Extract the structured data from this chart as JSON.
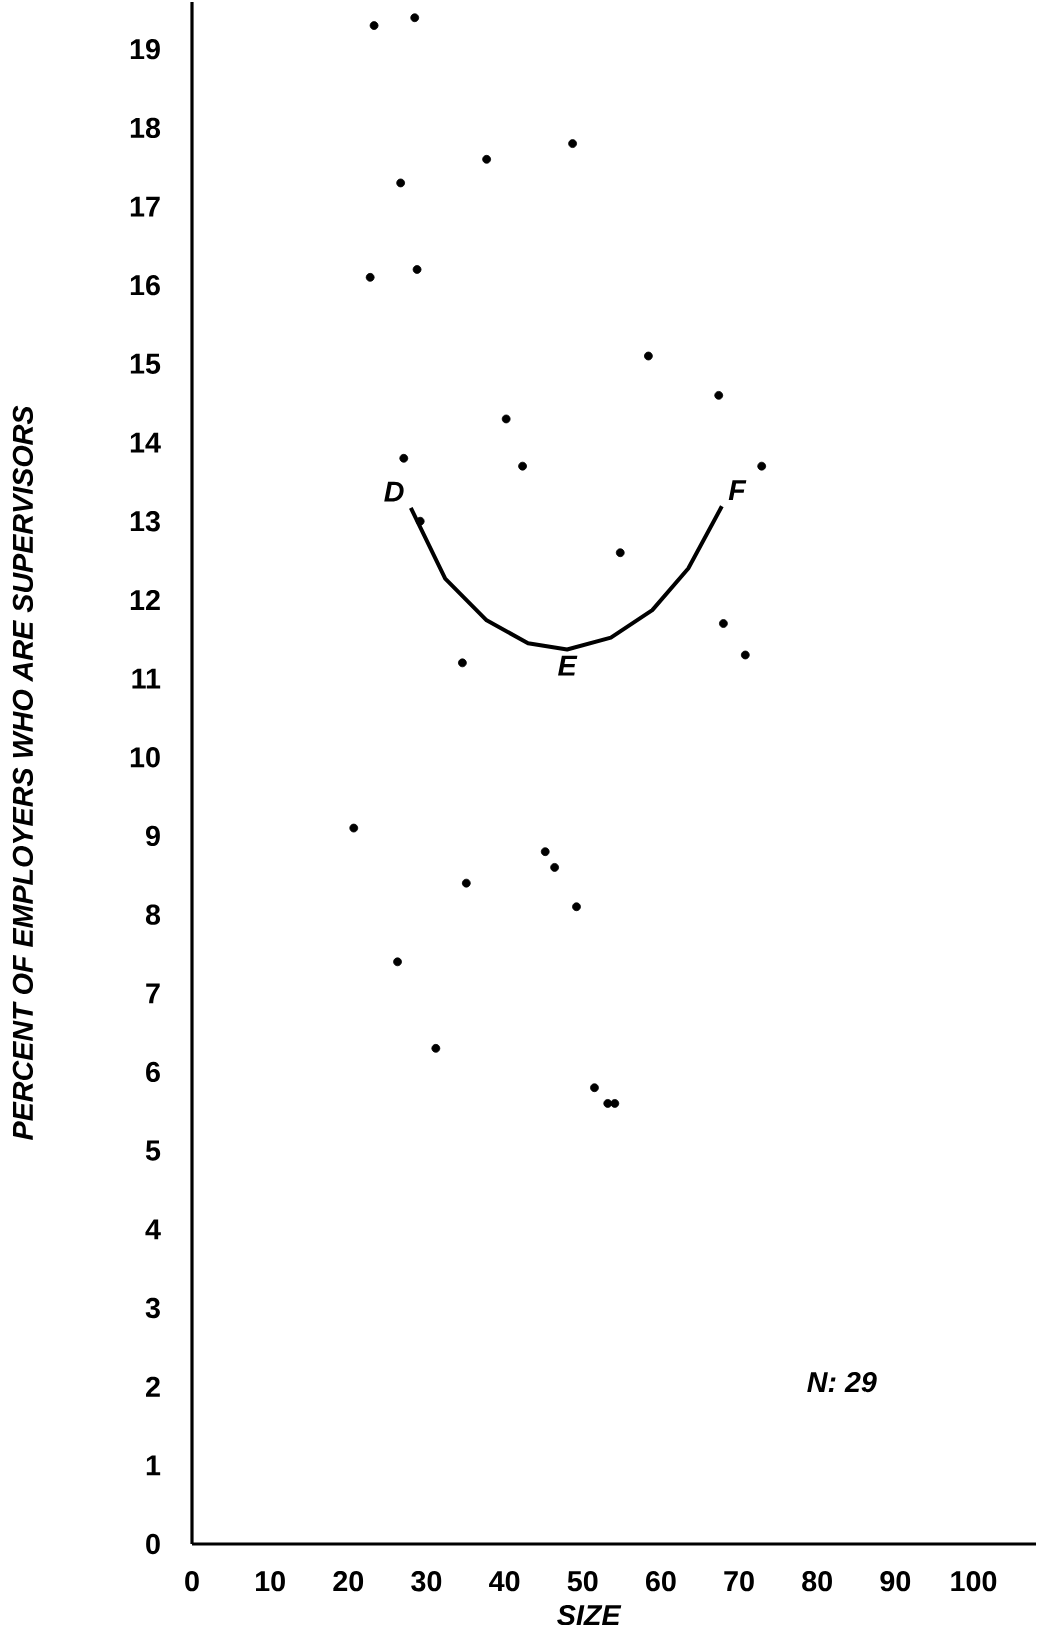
{
  "chart_data": {
    "type": "scatter",
    "xlabel": "SIZE",
    "ylabel": "PERCENT OF EMPLOYERS WHO ARE SUPERVISORS",
    "xlim": [
      0,
      108
    ],
    "ylim": [
      0,
      19.6
    ],
    "xticks": [
      0,
      10,
      20,
      30,
      40,
      50,
      60,
      70,
      80,
      90,
      100
    ],
    "yticks": [
      0,
      1,
      2,
      3,
      4,
      5,
      6,
      7,
      8,
      9,
      10,
      11,
      12,
      13,
      14,
      15,
      16,
      17,
      18,
      19
    ],
    "grid": false,
    "series": [
      {
        "type": "scatter",
        "marker": "circle",
        "color": "#000000",
        "x": [
          23.3,
          28.5,
          37.7,
          48.7,
          26.7,
          22.8,
          28.8,
          58.4,
          67.4,
          40.2,
          27.1,
          42.3,
          72.9,
          29.2,
          54.8,
          68.0,
          70.8,
          34.6,
          20.7,
          45.2,
          46.4,
          35.1,
          49.2,
          26.3,
          31.2,
          51.5,
          53.2,
          54.1
        ],
        "values": [
          19.3,
          19.4,
          17.6,
          17.8,
          17.3,
          16.1,
          16.2,
          15.1,
          14.6,
          14.3,
          13.8,
          13.7,
          13.7,
          13.0,
          12.6,
          11.7,
          11.3,
          11.2,
          9.1,
          8.8,
          8.6,
          8.4,
          8.1,
          7.4,
          6.3,
          5.8,
          5.6,
          5.6
        ]
      },
      {
        "type": "line",
        "marker": "none",
        "color": "#000000",
        "x": [
          28.0,
          32.4,
          37.7,
          43.0,
          48.0,
          53.6,
          58.9,
          63.5,
          67.8
        ],
        "values": [
          13.17,
          12.27,
          11.74,
          11.45,
          11.37,
          11.52,
          11.87,
          12.4,
          13.19
        ]
      }
    ],
    "annotations": [
      {
        "text": "D",
        "x": 28.0,
        "y": 13.17
      },
      {
        "text": "E",
        "x": 48.0,
        "y": 11.37
      },
      {
        "text": "F",
        "x": 67.8,
        "y": 13.19
      },
      "N: 29"
    ]
  }
}
